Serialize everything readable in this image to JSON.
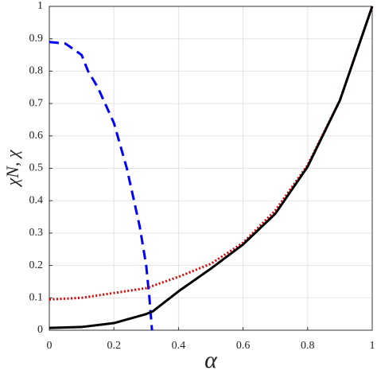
{
  "chart_data": {
    "type": "line",
    "xlabel": "α",
    "ylabel": "χN, χ",
    "xlim": [
      0,
      1
    ],
    "ylim": [
      0,
      1
    ],
    "xticks": [
      0,
      0.2,
      0.4,
      0.6,
      0.8,
      1
    ],
    "yticks": [
      0,
      0.1,
      0.2,
      0.3,
      0.4,
      0.5,
      0.6,
      0.7,
      0.8,
      0.9,
      1
    ],
    "grid": true,
    "series": [
      {
        "color": "#0000ff",
        "dash": "dashed",
        "x": [
          0,
          0.05,
          0.1,
          0.12,
          0.15,
          0.2,
          0.24,
          0.28,
          0.3,
          0.31,
          0.318
        ],
        "values": [
          0.89,
          0.885,
          0.85,
          0.8,
          0.75,
          0.64,
          0.5,
          0.32,
          0.2,
          0.1,
          0
        ]
      },
      {
        "color": "#e00000",
        "dash": "dotted",
        "x": [
          0,
          0.1,
          0.2,
          0.3,
          0.4,
          0.5,
          0.6,
          0.7,
          0.8,
          0.9,
          1
        ],
        "values": [
          0.095,
          0.1,
          0.115,
          0.13,
          0.165,
          0.205,
          0.27,
          0.37,
          0.51,
          0.71,
          1
        ]
      },
      {
        "color": "#000000",
        "dash": "solid",
        "x": [
          0,
          0.1,
          0.2,
          0.3,
          0.32,
          0.4,
          0.5,
          0.6,
          0.7,
          0.8,
          0.9,
          1
        ],
        "values": [
          0.007,
          0.01,
          0.022,
          0.05,
          0.058,
          0.12,
          0.19,
          0.265,
          0.36,
          0.505,
          0.71,
          1
        ]
      }
    ]
  }
}
